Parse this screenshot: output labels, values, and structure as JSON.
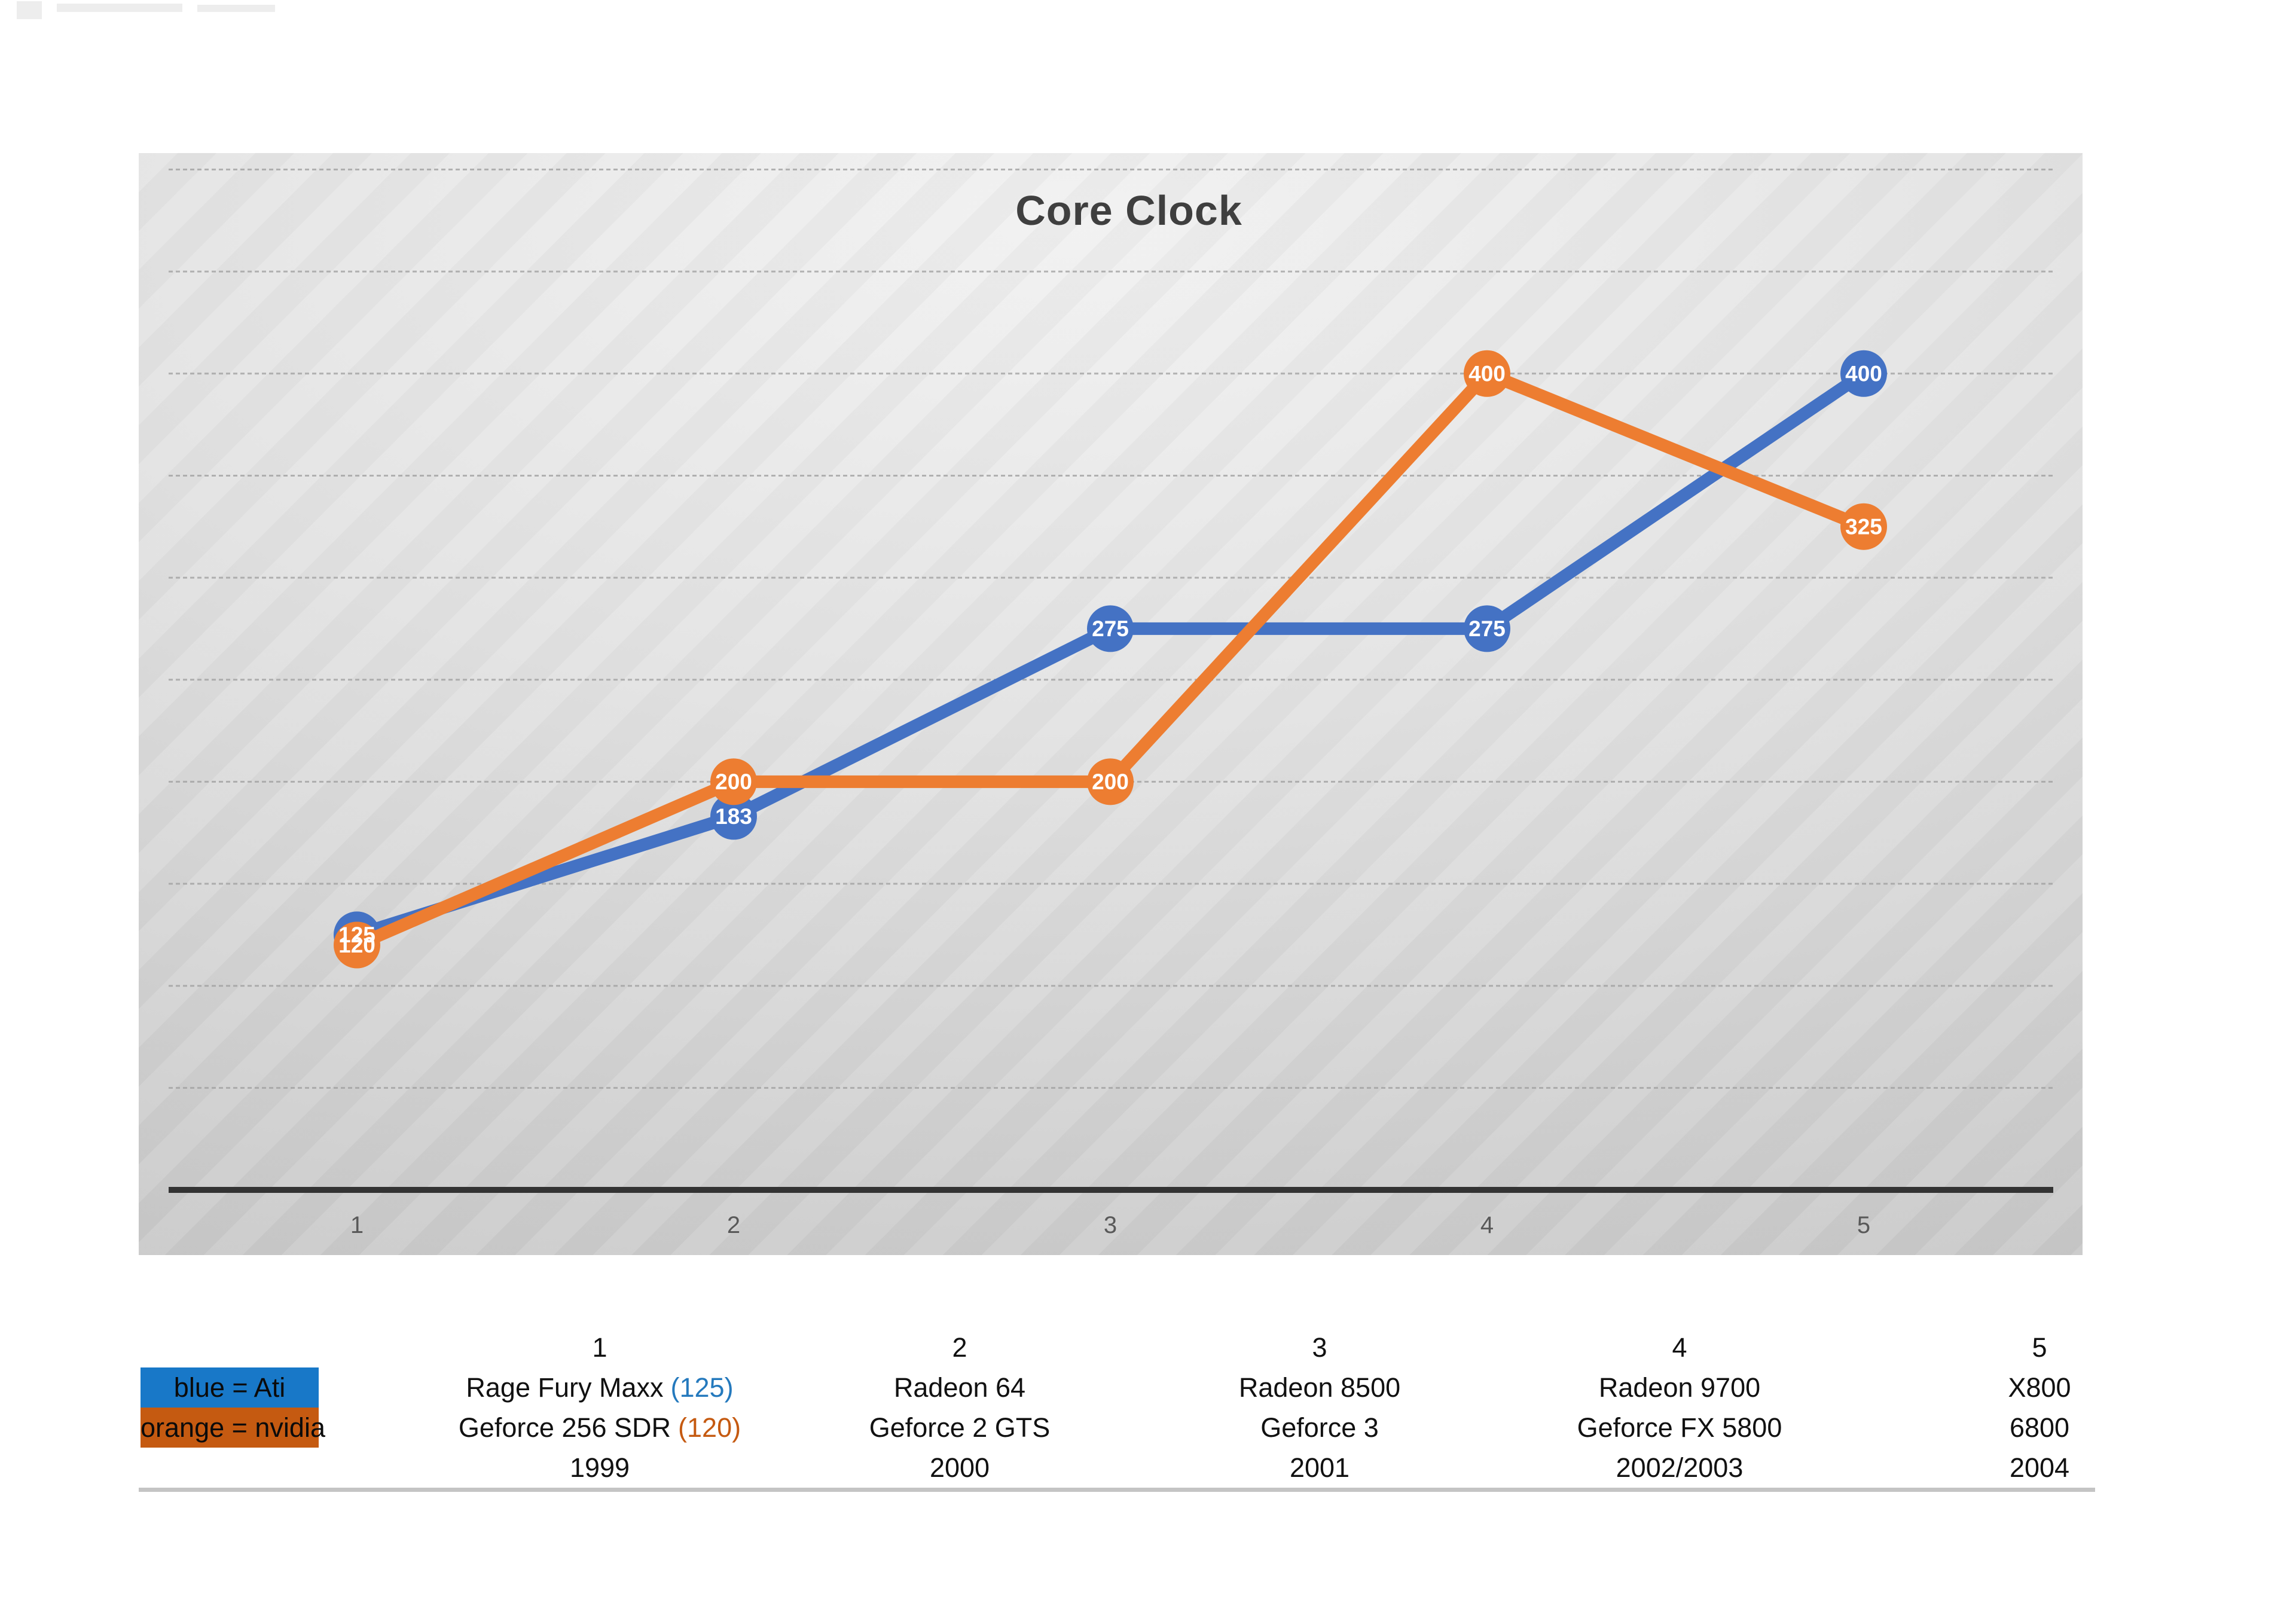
{
  "chart_data": {
    "type": "line",
    "title": "Core Clock",
    "categories": [
      "1",
      "2",
      "3",
      "4",
      "5"
    ],
    "series": [
      {
        "name": "Ati",
        "color": "#4472c4",
        "values": [
          125,
          183,
          275,
          275,
          400
        ]
      },
      {
        "name": "nvidia",
        "color": "#ed7d31",
        "values": [
          120,
          200,
          200,
          400,
          325
        ]
      }
    ],
    "xlabel": "",
    "ylabel": "",
    "ylim": [
      0,
      510
    ],
    "gridline_interval": 50,
    "grid": true,
    "legend_position": "below-left",
    "data_labels": "on-marker"
  },
  "legend": {
    "items": [
      {
        "label": "blue = Ati",
        "swatch": "#1878c8"
      },
      {
        "label": "orange = nvidia",
        "swatch": "#c55a11"
      }
    ]
  },
  "table": {
    "columns": [
      {
        "header": "1",
        "ati_name": "Rage Fury Maxx",
        "ati_clock_note": "(125)",
        "nvidia_name": "Geforce 256 SDR",
        "nvidia_clock_note": "(120)",
        "year": "1999"
      },
      {
        "header": "2",
        "ati_name": "Radeon 64",
        "nvidia_name": "Geforce 2 GTS",
        "year": "2000"
      },
      {
        "header": "3",
        "ati_name": "Radeon 8500",
        "nvidia_name": "Geforce 3",
        "year": "2001"
      },
      {
        "header": "4",
        "ati_name": "Radeon 9700",
        "nvidia_name": "Geforce FX 5800",
        "year": "2002/2003"
      },
      {
        "header": "5",
        "ati_name": "X800",
        "nvidia_name": "6800",
        "year": "2004"
      }
    ]
  },
  "colors": {
    "ati_line": "#4472c4",
    "nvidia_line": "#ed7d31",
    "ati_note_text": "#2479bd",
    "nvidia_note_text": "#c55a11",
    "title_text": "#3f3f3f",
    "tick_text": "#595959"
  }
}
